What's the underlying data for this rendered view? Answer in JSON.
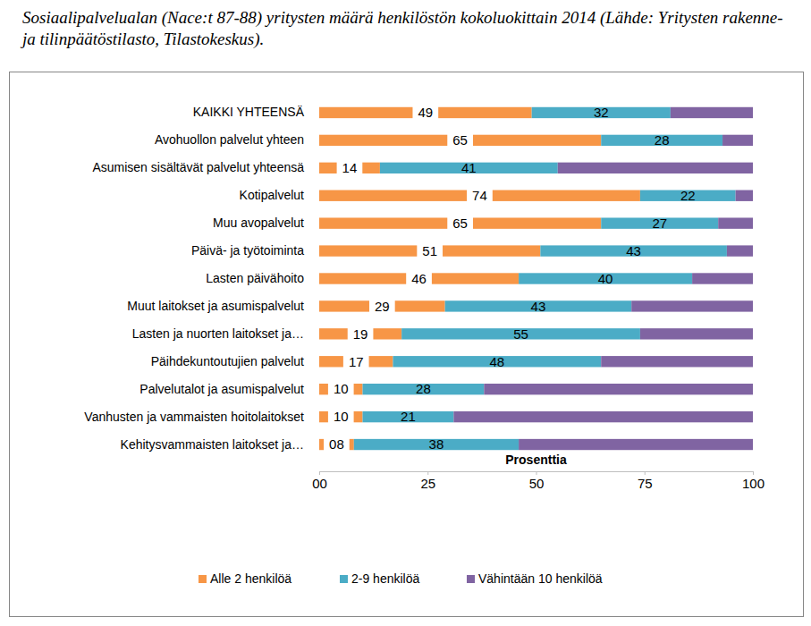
{
  "chart_data": {
    "type": "bar",
    "orientation": "horizontal",
    "stacked": true,
    "data_labels": true,
    "grid": false,
    "legend": "bottom",
    "title": "Sosiaalipalvelualan (Nace:t 87-88) yritysten määrä henkilöstön kokoluokittain 2014 (Lähde: Yritysten rakenne- ja tilinpäätöstilasto, Tilastokeskus).",
    "x_label": "Prosenttia",
    "categories": [
      "KAIKKI YHTEENSÄ",
      "Avohuollon palvelut yhteen",
      "Asumisen sisältävät palvelut yhteensä",
      "Kotipalvelut",
      "Muu avopalvelut",
      "Päivä- ja työtoiminta",
      "Lasten päivähoito",
      "Muut laitokset ja asumispalvelut",
      "Lasten ja nuorten laitokset ja…",
      "Päihdekuntoutujien palvelut",
      "Palvelutalot ja asumispalvelut",
      "Vanhusten ja vammaisten hoitolaitokset",
      "Kehitysvammaisten laitokset ja…"
    ],
    "series": [
      {
        "name": "Alle 2 henkilöä",
        "color": "#f79646",
        "data_labels": true,
        "values": [
          49,
          65,
          14,
          74,
          65,
          51,
          46,
          29,
          19,
          17,
          10,
          10,
          8
        ],
        "value_labels": [
          "49",
          "65",
          "14",
          "74",
          "65",
          "51",
          "46",
          "29",
          "19",
          "17",
          "10",
          "10",
          "08"
        ]
      },
      {
        "name": "2-9 henkilöä",
        "color": "#4bacc6",
        "data_labels": true,
        "values": [
          32,
          28,
          41,
          22,
          27,
          43,
          40,
          43,
          55,
          48,
          28,
          21,
          38
        ]
      },
      {
        "name": "Vähintään 10 henkilöä",
        "color": "#8064a2",
        "data_labels": false,
        "values": [
          19,
          7,
          45,
          4,
          8,
          6,
          14,
          28,
          26,
          35,
          62,
          69,
          54
        ]
      }
    ],
    "xlim": [
      0,
      100
    ],
    "xticks": [
      {
        "value": 0,
        "label": "00"
      },
      25,
      50,
      75,
      100
    ]
  }
}
